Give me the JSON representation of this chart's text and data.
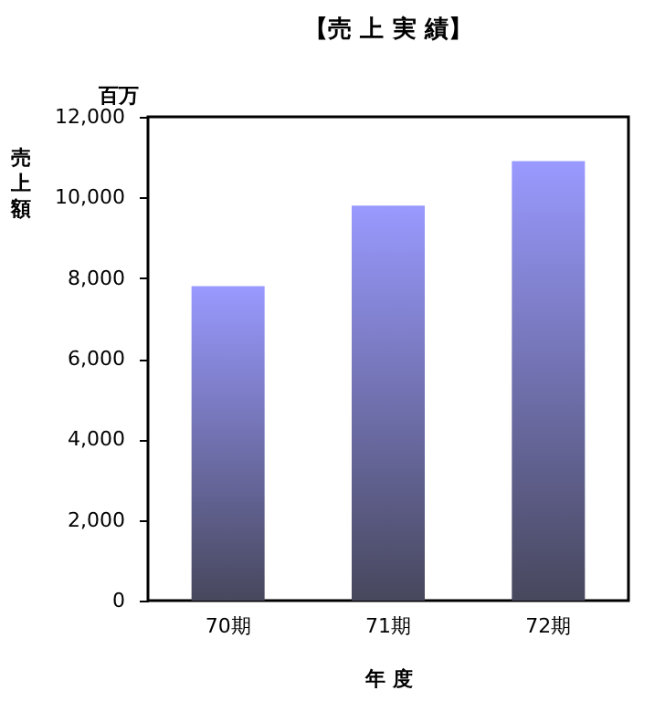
{
  "chart_data": {
    "type": "bar",
    "title": "【売 上 実 績】",
    "xlabel": "年 度",
    "ylabel": "売上額",
    "annotations": [
      "百万"
    ],
    "categories": [
      "70期",
      "71期",
      "72期"
    ],
    "series": [
      {
        "color": "#9999ff",
        "values": [
          7800,
          9800,
          10900
        ]
      }
    ],
    "ylim": [
      0,
      12000
    ],
    "yticks": [
      0,
      {
        "value": 2000,
        "label": "2,000"
      },
      {
        "value": 4000,
        "label": "4,000"
      },
      {
        "value": 6000,
        "label": "6,000"
      },
      {
        "value": 8000,
        "label": "8,000"
      },
      {
        "value": 10000,
        "label": "10,000"
      },
      {
        "value": 12000,
        "label": "12,000"
      }
    ],
    "grid": false
  }
}
